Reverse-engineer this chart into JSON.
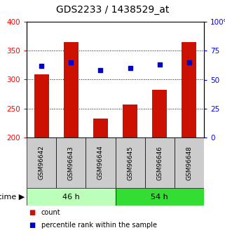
{
  "title": "GDS2233 / 1438529_at",
  "samples": [
    "GSM96642",
    "GSM96643",
    "GSM96644",
    "GSM96645",
    "GSM96646",
    "GSM96648"
  ],
  "counts": [
    309,
    365,
    233,
    257,
    282,
    365
  ],
  "percentiles": [
    62,
    65,
    58,
    60,
    63,
    65
  ],
  "groups": [
    {
      "label": "46 h",
      "indices": [
        0,
        1,
        2
      ],
      "color": "#bbffbb"
    },
    {
      "label": "54 h",
      "indices": [
        3,
        4,
        5
      ],
      "color": "#33dd33"
    }
  ],
  "ylim_left": [
    200,
    400
  ],
  "ylim_right": [
    0,
    100
  ],
  "yticks_left": [
    200,
    250,
    300,
    350,
    400
  ],
  "yticks_right": [
    0,
    25,
    50,
    75,
    100
  ],
  "bar_color": "#cc1100",
  "dot_color": "#0000cc",
  "bar_width": 0.5,
  "title_fontsize": 10,
  "tick_fontsize": 7.5,
  "label_fontsize": 6.5,
  "group_fontsize": 8,
  "legend_fontsize": 7
}
